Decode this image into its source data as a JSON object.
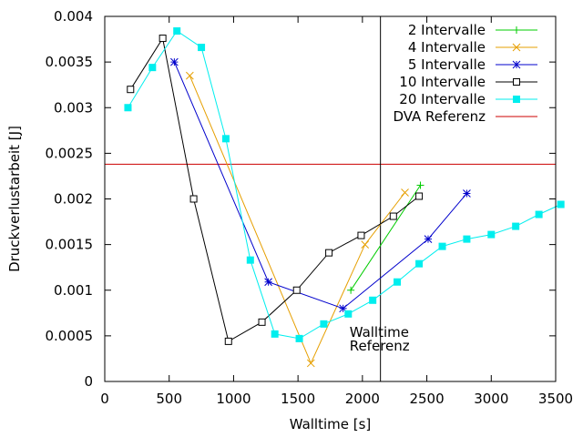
{
  "chart_data": {
    "type": "line",
    "xlabel": "Walltime [s]",
    "ylabel": "Druckverlustarbeit [J]",
    "xlim": [
      0,
      3500
    ],
    "ylim": [
      0,
      0.004
    ],
    "x_ticks": [
      {
        "value": 0,
        "label": "0"
      },
      {
        "value": 500,
        "label": "500"
      },
      {
        "value": 1000,
        "label": "1000"
      },
      {
        "value": 1500,
        "label": "1500"
      },
      {
        "value": 2000,
        "label": "2000"
      },
      {
        "value": 2500,
        "label": "2500"
      },
      {
        "value": 3000,
        "label": "3000"
      },
      {
        "value": 3500,
        "label": "3500"
      }
    ],
    "y_ticks": [
      {
        "value": 0,
        "label": "0"
      },
      {
        "value": 0.0005,
        "label": "0.0005"
      },
      {
        "value": 0.001,
        "label": "0.001"
      },
      {
        "value": 0.0015,
        "label": "0.0015"
      },
      {
        "value": 0.002,
        "label": "0.002"
      },
      {
        "value": 0.0025,
        "label": "0.0025"
      },
      {
        "value": 0.003,
        "label": "0.003"
      },
      {
        "value": 0.0035,
        "label": "0.0035"
      },
      {
        "value": 0.004,
        "label": "0.004"
      }
    ],
    "legend_position": "top-right",
    "series": [
      {
        "name": "2 Intervalle",
        "color": "#00cc00",
        "marker": "plus",
        "points": [
          [
            1910,
            0.001
          ],
          [
            2450,
            0.00215
          ]
        ]
      },
      {
        "name": "4 Intervalle",
        "color": "#e69f00",
        "marker": "cross",
        "points": [
          [
            660,
            0.00335
          ],
          [
            1600,
            0.0002
          ],
          [
            2020,
            0.0015
          ],
          [
            2330,
            0.00207
          ]
        ]
      },
      {
        "name": "5 Intervalle",
        "color": "#0000cc",
        "marker": "star",
        "points": [
          [
            540,
            0.0035
          ],
          [
            1270,
            0.00109
          ],
          [
            1850,
            0.0008
          ],
          [
            2510,
            0.00156
          ],
          [
            2810,
            0.00206
          ]
        ]
      },
      {
        "name": "10 Intervalle",
        "color": "#000000",
        "marker": "open-square",
        "points": [
          [
            200,
            0.0032
          ],
          [
            450,
            0.00376
          ],
          [
            690,
            0.002
          ],
          [
            960,
            0.00044
          ],
          [
            1220,
            0.00065
          ],
          [
            1490,
            0.001
          ],
          [
            1740,
            0.00141
          ],
          [
            1990,
            0.0016
          ],
          [
            2240,
            0.00181
          ],
          [
            2440,
            0.00203
          ]
        ]
      },
      {
        "name": "20 Intervalle",
        "color": "#00eeee",
        "marker": "filled-square",
        "points": [
          [
            180,
            0.003
          ],
          [
            370,
            0.00344
          ],
          [
            560,
            0.00384
          ],
          [
            750,
            0.00366
          ],
          [
            940,
            0.00266
          ],
          [
            1130,
            0.00133
          ],
          [
            1320,
            0.00052
          ],
          [
            1510,
            0.00047
          ],
          [
            1700,
            0.00063
          ],
          [
            1890,
            0.00074
          ],
          [
            2080,
            0.00089
          ],
          [
            2270,
            0.00109
          ],
          [
            2440,
            0.00129
          ],
          [
            2620,
            0.00148
          ],
          [
            2810,
            0.00156
          ],
          [
            3000,
            0.00161
          ],
          [
            3190,
            0.0017
          ],
          [
            3370,
            0.00183
          ],
          [
            3540,
            0.00194
          ]
        ]
      }
    ],
    "reference_lines": [
      {
        "name": "DVA Referenz",
        "orientation": "horizontal",
        "value": 0.00238,
        "color": "#cc0000",
        "in_legend": true
      },
      {
        "name": "Walltime Referenz",
        "orientation": "vertical",
        "value": 2140,
        "color": "#000000",
        "in_legend": false
      }
    ],
    "annotations": [
      {
        "text": "Walltime",
        "x": 1900,
        "y": 0.00049
      },
      {
        "text": "Referenz",
        "x": 1900,
        "y": 0.00034
      }
    ]
  }
}
